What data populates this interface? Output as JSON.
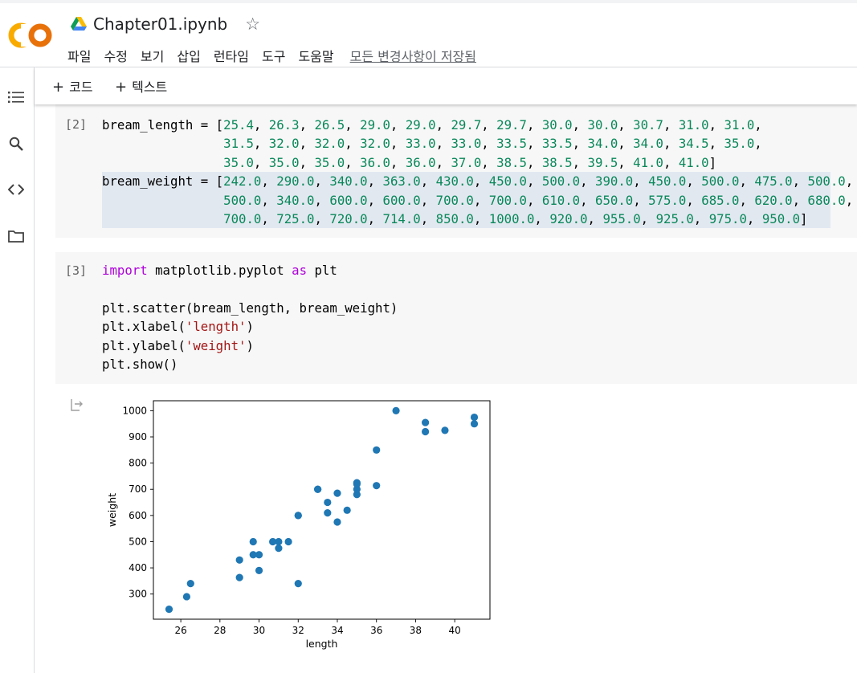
{
  "header": {
    "logo_text": "CO",
    "doc_title": "Chapter01.ipynb",
    "menu": [
      "파일",
      "수정",
      "보기",
      "삽입",
      "런타임",
      "도구",
      "도움말"
    ],
    "save_status": "모든 변경사항이 저장됨"
  },
  "toolbar": {
    "add_code": "코드",
    "add_text": "텍스트"
  },
  "sidebar": {
    "icons": [
      "toc-icon",
      "search-icon",
      "code-snippets-icon",
      "folder-icon"
    ]
  },
  "cells": [
    {
      "exec_label": "[2]",
      "lines": [
        [
          [
            "t",
            "bream_length = ["
          ],
          [
            "n",
            "25.4"
          ],
          [
            "t",
            ", "
          ],
          [
            "n",
            "26.3"
          ],
          [
            "t",
            ", "
          ],
          [
            "n",
            "26.5"
          ],
          [
            "t",
            ", "
          ],
          [
            "n",
            "29.0"
          ],
          [
            "t",
            ", "
          ],
          [
            "n",
            "29.0"
          ],
          [
            "t",
            ", "
          ],
          [
            "n",
            "29.7"
          ],
          [
            "t",
            ", "
          ],
          [
            "n",
            "29.7"
          ],
          [
            "t",
            ", "
          ],
          [
            "n",
            "30.0"
          ],
          [
            "t",
            ", "
          ],
          [
            "n",
            "30.0"
          ],
          [
            "t",
            ", "
          ],
          [
            "n",
            "30.7"
          ],
          [
            "t",
            ", "
          ],
          [
            "n",
            "31.0"
          ],
          [
            "t",
            ", "
          ],
          [
            "n",
            "31.0"
          ],
          [
            "t",
            ","
          ]
        ],
        [
          [
            "t",
            "                "
          ],
          [
            "n",
            "31.5"
          ],
          [
            "t",
            ", "
          ],
          [
            "n",
            "32.0"
          ],
          [
            "t",
            ", "
          ],
          [
            "n",
            "32.0"
          ],
          [
            "t",
            ", "
          ],
          [
            "n",
            "32.0"
          ],
          [
            "t",
            ", "
          ],
          [
            "n",
            "33.0"
          ],
          [
            "t",
            ", "
          ],
          [
            "n",
            "33.0"
          ],
          [
            "t",
            ", "
          ],
          [
            "n",
            "33.5"
          ],
          [
            "t",
            ", "
          ],
          [
            "n",
            "33.5"
          ],
          [
            "t",
            ", "
          ],
          [
            "n",
            "34.0"
          ],
          [
            "t",
            ", "
          ],
          [
            "n",
            "34.0"
          ],
          [
            "t",
            ", "
          ],
          [
            "n",
            "34.5"
          ],
          [
            "t",
            ", "
          ],
          [
            "n",
            "35.0"
          ],
          [
            "t",
            ","
          ]
        ],
        [
          [
            "t",
            "                "
          ],
          [
            "n",
            "35.0"
          ],
          [
            "t",
            ", "
          ],
          [
            "n",
            "35.0"
          ],
          [
            "t",
            ", "
          ],
          [
            "n",
            "35.0"
          ],
          [
            "t",
            ", "
          ],
          [
            "n",
            "36.0"
          ],
          [
            "t",
            ", "
          ],
          [
            "n",
            "36.0"
          ],
          [
            "t",
            ", "
          ],
          [
            "n",
            "37.0"
          ],
          [
            "t",
            ", "
          ],
          [
            "n",
            "38.5"
          ],
          [
            "t",
            ", "
          ],
          [
            "n",
            "38.5"
          ],
          [
            "t",
            ", "
          ],
          [
            "n",
            "39.5"
          ],
          [
            "t",
            ", "
          ],
          [
            "n",
            "41.0"
          ],
          [
            "t",
            ", "
          ],
          [
            "n",
            "41.0"
          ],
          [
            "t",
            "]"
          ]
        ],
        [
          [
            "t",
            "bream_weight = ["
          ],
          [
            "n",
            "242.0"
          ],
          [
            "t",
            ", "
          ],
          [
            "n",
            "290.0"
          ],
          [
            "t",
            ", "
          ],
          [
            "n",
            "340.0"
          ],
          [
            "t",
            ", "
          ],
          [
            "n",
            "363.0"
          ],
          [
            "t",
            ", "
          ],
          [
            "n",
            "430.0"
          ],
          [
            "t",
            ", "
          ],
          [
            "n",
            "450.0"
          ],
          [
            "t",
            ", "
          ],
          [
            "n",
            "500.0"
          ],
          [
            "t",
            ", "
          ],
          [
            "n",
            "390.0"
          ],
          [
            "t",
            ", "
          ],
          [
            "n",
            "450.0"
          ],
          [
            "t",
            ", "
          ],
          [
            "n",
            "500.0"
          ],
          [
            "t",
            ", "
          ],
          [
            "n",
            "475.0"
          ],
          [
            "t",
            ", "
          ],
          [
            "n",
            "500.0"
          ],
          [
            "t",
            ","
          ]
        ],
        [
          [
            "t",
            "                "
          ],
          [
            "n",
            "500.0"
          ],
          [
            "t",
            ", "
          ],
          [
            "n",
            "340.0"
          ],
          [
            "t",
            ", "
          ],
          [
            "n",
            "600.0"
          ],
          [
            "t",
            ", "
          ],
          [
            "n",
            "600.0"
          ],
          [
            "t",
            ", "
          ],
          [
            "n",
            "700.0"
          ],
          [
            "t",
            ", "
          ],
          [
            "n",
            "700.0"
          ],
          [
            "t",
            ", "
          ],
          [
            "n",
            "610.0"
          ],
          [
            "t",
            ", "
          ],
          [
            "n",
            "650.0"
          ],
          [
            "t",
            ", "
          ],
          [
            "n",
            "575.0"
          ],
          [
            "t",
            ", "
          ],
          [
            "n",
            "685.0"
          ],
          [
            "t",
            ", "
          ],
          [
            "n",
            "620.0"
          ],
          [
            "t",
            ", "
          ],
          [
            "n",
            "680.0"
          ],
          [
            "t",
            ","
          ]
        ],
        [
          [
            "t",
            "                "
          ],
          [
            "n",
            "700.0"
          ],
          [
            "t",
            ", "
          ],
          [
            "n",
            "725.0"
          ],
          [
            "t",
            ", "
          ],
          [
            "n",
            "720.0"
          ],
          [
            "t",
            ", "
          ],
          [
            "n",
            "714.0"
          ],
          [
            "t",
            ", "
          ],
          [
            "n",
            "850.0"
          ],
          [
            "t",
            ", "
          ],
          [
            "n",
            "1000.0"
          ],
          [
            "t",
            ", "
          ],
          [
            "n",
            "920.0"
          ],
          [
            "t",
            ", "
          ],
          [
            "n",
            "955.0"
          ],
          [
            "t",
            ", "
          ],
          [
            "n",
            "925.0"
          ],
          [
            "t",
            ", "
          ],
          [
            "n",
            "975.0"
          ],
          [
            "t",
            ", "
          ],
          [
            "n",
            "950.0"
          ],
          [
            "t",
            "]"
          ]
        ]
      ]
    },
    {
      "exec_label": "[3]",
      "lines": [
        [
          [
            "k",
            "import"
          ],
          [
            "t",
            " matplotlib.pyplot "
          ],
          [
            "k",
            "as"
          ],
          [
            "t",
            " plt"
          ]
        ],
        [],
        [
          [
            "t",
            "plt.scatter(bream_length, bream_weight)"
          ]
        ],
        [
          [
            "t",
            "plt.xlabel("
          ],
          [
            "s",
            "'length'"
          ],
          [
            "t",
            ")"
          ]
        ],
        [
          [
            "t",
            "plt.ylabel("
          ],
          [
            "s",
            "'weight'"
          ],
          [
            "t",
            ")"
          ]
        ],
        [
          [
            "t",
            "plt.show()"
          ]
        ]
      ]
    }
  ],
  "chart_data": {
    "type": "scatter",
    "xlabel": "length",
    "ylabel": "weight",
    "xticks": [
      26,
      28,
      30,
      32,
      34,
      36,
      38,
      40
    ],
    "yticks": [
      300,
      400,
      500,
      600,
      700,
      800,
      900,
      1000
    ],
    "xlim": [
      24.6,
      41.8
    ],
    "ylim": [
      204,
      1038
    ],
    "marker_color": "#1f77b4",
    "x": [
      25.4,
      26.3,
      26.5,
      29.0,
      29.0,
      29.7,
      29.7,
      30.0,
      30.0,
      30.7,
      31.0,
      31.0,
      31.5,
      32.0,
      32.0,
      32.0,
      33.0,
      33.0,
      33.5,
      33.5,
      34.0,
      34.0,
      34.5,
      35.0,
      35.0,
      35.0,
      35.0,
      36.0,
      36.0,
      37.0,
      38.5,
      38.5,
      39.5,
      41.0,
      41.0
    ],
    "y": [
      242.0,
      290.0,
      340.0,
      363.0,
      430.0,
      450.0,
      500.0,
      390.0,
      450.0,
      500.0,
      475.0,
      500.0,
      500.0,
      340.0,
      600.0,
      600.0,
      700.0,
      700.0,
      610.0,
      650.0,
      575.0,
      685.0,
      620.0,
      680.0,
      700.0,
      725.0,
      720.0,
      714.0,
      850.0,
      1000.0,
      920.0,
      955.0,
      925.0,
      975.0,
      950.0
    ]
  }
}
